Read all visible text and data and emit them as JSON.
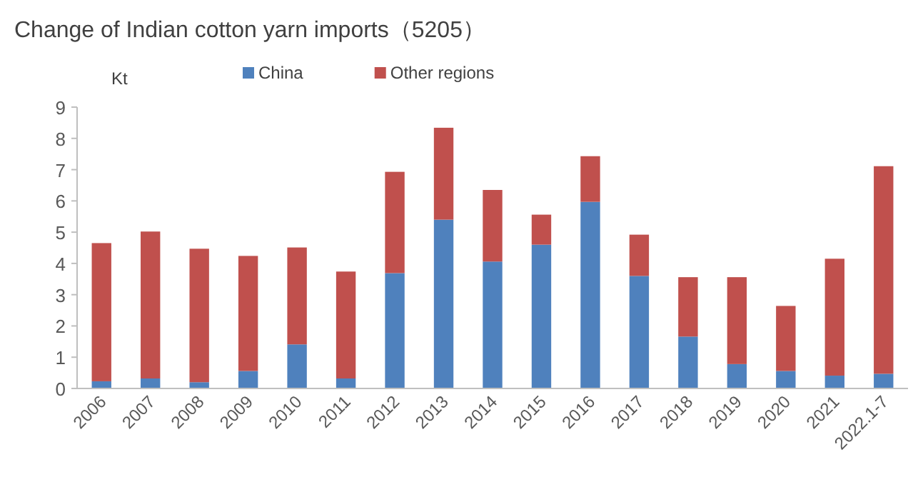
{
  "chart_data": {
    "type": "bar",
    "title": "Change of Indian cotton yarn imports（5205）",
    "ylabel": "Kt",
    "categories": [
      "2006",
      "2007",
      "2008",
      "2009",
      "2010",
      "2011",
      "2012",
      "2013",
      "2014",
      "2015",
      "2016",
      "2017",
      "2018",
      "2019",
      "2020",
      "2021",
      "2022.1-7"
    ],
    "stacked": true,
    "series": [
      {
        "name": "China",
        "color": "#4f81bd",
        "values": [
          0.23,
          0.32,
          0.2,
          0.56,
          1.41,
          0.32,
          3.69,
          5.4,
          4.06,
          4.6,
          5.97,
          3.6,
          1.66,
          0.78,
          0.56,
          0.41,
          0.47
        ]
      },
      {
        "name": "Other regions",
        "color": "#c0504d",
        "values": [
          4.42,
          4.7,
          4.27,
          3.68,
          3.1,
          3.42,
          3.24,
          2.94,
          2.29,
          0.96,
          1.46,
          1.32,
          1.9,
          2.78,
          2.08,
          3.74,
          6.64
        ]
      }
    ],
    "ylim": [
      0,
      9
    ],
    "yticks": [
      0,
      1,
      2,
      3,
      4,
      5,
      6,
      7,
      8,
      9
    ],
    "legend": "top",
    "grid": false
  }
}
